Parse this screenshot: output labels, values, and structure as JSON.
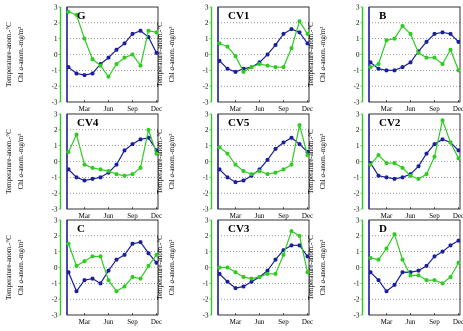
{
  "figure": {
    "ylabel_temperature": "Temperature-anom.-°C",
    "ylabel_chl_prefix": "Chl ",
    "ylabel_chl_italic": "a",
    "ylabel_chl_suffix": "-anom.-mg/m³",
    "colors": {
      "temperature": "#1a1f9c",
      "chlorophyll": "#2ecc1f",
      "axis": "#000000"
    }
  },
  "chart_data": [
    {
      "type": "line",
      "title": "G",
      "categories": [
        "Jan",
        "Feb",
        "Mar",
        "Apr",
        "May",
        "Jun",
        "Jul",
        "Aug",
        "Sep",
        "Oct",
        "Nov",
        "Dec"
      ],
      "xtick_labels": [
        "Mar",
        "Jun",
        "Sep",
        "Dec"
      ],
      "ylim": [
        -3,
        3
      ],
      "yticks": [
        -3,
        -2,
        -1,
        0,
        1,
        2,
        3
      ],
      "series": [
        {
          "key": "temperature",
          "values": [
            -0.8,
            -1.2,
            -1.3,
            -1.2,
            -0.6,
            -0.2,
            0.3,
            0.7,
            1.3,
            1.5,
            1.1,
            0.1
          ]
        },
        {
          "key": "chlorophyll",
          "values": [
            2.7,
            2.5,
            1.0,
            -0.3,
            -0.7,
            -1.4,
            -0.6,
            -0.2,
            0.0,
            -0.7,
            1.5,
            1.4
          ]
        }
      ]
    },
    {
      "type": "line",
      "title": "CV1",
      "categories": [
        "Jan",
        "Feb",
        "Mar",
        "Apr",
        "May",
        "Jun",
        "Jul",
        "Aug",
        "Sep",
        "Oct",
        "Nov",
        "Dec"
      ],
      "xtick_labels": [
        "Mar",
        "Jun",
        "Sep",
        "Dec"
      ],
      "ylim": [
        -3,
        3
      ],
      "yticks": [
        -3,
        -2,
        -1,
        0,
        1,
        2,
        3
      ],
      "series": [
        {
          "key": "temperature",
          "values": [
            -0.4,
            -0.9,
            -1.1,
            -0.9,
            -0.8,
            -0.5,
            0.0,
            0.6,
            1.3,
            1.6,
            1.4,
            0.7
          ]
        },
        {
          "key": "chlorophyll",
          "values": [
            0.7,
            0.5,
            -0.1,
            -1.1,
            -0.8,
            -0.6,
            -0.7,
            -0.8,
            -0.8,
            0.4,
            2.1,
            1.3
          ]
        }
      ]
    },
    {
      "type": "line",
      "title": "B",
      "categories": [
        "Jan",
        "Feb",
        "Mar",
        "Apr",
        "May",
        "Jun",
        "Jul",
        "Aug",
        "Sep",
        "Oct",
        "Nov",
        "Dec"
      ],
      "xtick_labels": [
        "Mar",
        "Jun",
        "Sep",
        "Dec"
      ],
      "ylim": [
        -3,
        3
      ],
      "yticks": [
        -3,
        -2,
        -1,
        0,
        1,
        2,
        3
      ],
      "series": [
        {
          "key": "temperature",
          "values": [
            -0.5,
            -0.9,
            -1.0,
            -1.0,
            -0.8,
            -0.5,
            0.2,
            0.8,
            1.3,
            1.4,
            1.3,
            0.8
          ]
        },
        {
          "key": "chlorophyll",
          "values": [
            -0.8,
            -0.6,
            0.9,
            1.0,
            1.8,
            1.3,
            0.1,
            -0.2,
            -0.2,
            -0.6,
            0.3,
            -1.0
          ]
        }
      ]
    },
    {
      "type": "line",
      "title": "CV4",
      "categories": [
        "Jan",
        "Feb",
        "Mar",
        "Apr",
        "May",
        "Jun",
        "Jul",
        "Aug",
        "Sep",
        "Oct",
        "Nov",
        "Dec"
      ],
      "xtick_labels": [
        "Mar",
        "Jun",
        "Sep",
        "Dec"
      ],
      "ylim": [
        -3,
        3
      ],
      "yticks": [
        -3,
        -2,
        -1,
        0,
        1,
        2,
        3
      ],
      "series": [
        {
          "key": "temperature",
          "values": [
            -0.5,
            -1.0,
            -1.2,
            -1.1,
            -1.0,
            -0.7,
            -0.2,
            0.7,
            1.1,
            1.4,
            1.5,
            0.7
          ]
        },
        {
          "key": "chlorophyll",
          "values": [
            0.6,
            1.7,
            -0.2,
            -0.4,
            -0.5,
            -0.6,
            -0.8,
            -0.9,
            -0.8,
            -0.4,
            2.0,
            0.5
          ]
        }
      ]
    },
    {
      "type": "line",
      "title": "CV5",
      "categories": [
        "Jan",
        "Feb",
        "Mar",
        "Apr",
        "May",
        "Jun",
        "Jul",
        "Aug",
        "Sep",
        "Oct",
        "Nov",
        "Dec"
      ],
      "xtick_labels": [
        "Mar",
        "Jun",
        "Sep",
        "Dec"
      ],
      "ylim": [
        -3,
        3
      ],
      "yticks": [
        -3,
        -2,
        -1,
        0,
        1,
        2,
        3
      ],
      "series": [
        {
          "key": "temperature",
          "values": [
            -0.5,
            -1.0,
            -1.3,
            -1.2,
            -0.9,
            -0.5,
            0.1,
            0.8,
            1.2,
            1.5,
            1.1,
            0.6
          ]
        },
        {
          "key": "chlorophyll",
          "values": [
            0.9,
            0.5,
            -0.2,
            -0.6,
            -0.8,
            -0.6,
            -0.8,
            -0.7,
            -0.5,
            -0.2,
            2.3,
            0.4
          ]
        }
      ]
    },
    {
      "type": "line",
      "title": "CV2",
      "categories": [
        "Jan",
        "Feb",
        "Mar",
        "Apr",
        "May",
        "Jun",
        "Jul",
        "Aug",
        "Sep",
        "Oct",
        "Nov",
        "Dec"
      ],
      "xtick_labels": [
        "Mar",
        "Jun",
        "Sep",
        "Dec"
      ],
      "ylim": [
        -3,
        3
      ],
      "yticks": [
        -3,
        -2,
        -1,
        0,
        1,
        2,
        3
      ],
      "series": [
        {
          "key": "temperature",
          "values": [
            -0.1,
            -0.9,
            -1.0,
            -1.1,
            -1.0,
            -0.8,
            -0.3,
            0.5,
            1.1,
            1.4,
            1.2,
            0.7
          ]
        },
        {
          "key": "chlorophyll",
          "values": [
            -0.2,
            0.4,
            -0.1,
            -0.1,
            -0.4,
            -0.9,
            -1.1,
            -0.8,
            0.3,
            2.6,
            1.2,
            0.2
          ]
        }
      ]
    },
    {
      "type": "line",
      "title": "C",
      "categories": [
        "Jan",
        "Feb",
        "Mar",
        "Apr",
        "May",
        "Jun",
        "Jul",
        "Aug",
        "Sep",
        "Oct",
        "Nov",
        "Dec"
      ],
      "xtick_labels": [
        "Mar",
        "Jun",
        "Sep",
        "Dec"
      ],
      "ylim": [
        -3,
        3
      ],
      "yticks": [
        -3,
        -2,
        -1,
        0,
        1,
        2,
        3
      ],
      "series": [
        {
          "key": "temperature",
          "values": [
            -0.3,
            -1.5,
            -0.8,
            -0.7,
            -1.0,
            -0.2,
            0.5,
            0.8,
            1.5,
            1.6,
            0.9,
            0.3
          ]
        },
        {
          "key": "chlorophyll",
          "values": [
            1.5,
            0.1,
            0.4,
            0.7,
            0.7,
            -0.8,
            -1.5,
            -1.2,
            -0.6,
            -0.7,
            0.1,
            0.8
          ]
        }
      ]
    },
    {
      "type": "line",
      "title": "CV3",
      "categories": [
        "Jan",
        "Feb",
        "Mar",
        "Apr",
        "May",
        "Jun",
        "Jul",
        "Aug",
        "Sep",
        "Oct",
        "Nov",
        "Dec"
      ],
      "xtick_labels": [
        "Mar",
        "Jun",
        "Sep",
        "Dec"
      ],
      "ylim": [
        -3,
        3
      ],
      "yticks": [
        -3,
        -2,
        -1,
        0,
        1,
        2,
        3
      ],
      "series": [
        {
          "key": "temperature",
          "values": [
            -0.4,
            -0.9,
            -1.3,
            -1.2,
            -0.9,
            -0.6,
            -0.2,
            0.5,
            1.1,
            1.4,
            1.4,
            0.7
          ]
        },
        {
          "key": "chlorophyll",
          "values": [
            0.0,
            0.0,
            -0.3,
            -0.6,
            -0.7,
            -0.6,
            -0.4,
            -0.4,
            0.8,
            2.3,
            2.0,
            -0.3
          ]
        }
      ]
    },
    {
      "type": "line",
      "title": "D",
      "categories": [
        "Jan",
        "Feb",
        "Mar",
        "Apr",
        "May",
        "Jun",
        "Jul",
        "Aug",
        "Sep",
        "Oct",
        "Nov",
        "Dec"
      ],
      "xtick_labels": [
        "Mar",
        "Jun",
        "Sep",
        "Dec"
      ],
      "ylim": [
        -3,
        3
      ],
      "yticks": [
        -3,
        -2,
        -1,
        0,
        1,
        2,
        3
      ],
      "series": [
        {
          "key": "temperature",
          "values": [
            -0.3,
            -0.8,
            -1.5,
            -1.1,
            -0.3,
            -0.3,
            -0.2,
            0.1,
            0.7,
            1.0,
            1.4,
            1.7
          ]
        },
        {
          "key": "chlorophyll",
          "values": [
            0.6,
            0.5,
            1.2,
            2.1,
            0.5,
            -0.5,
            -0.5,
            -0.8,
            -0.8,
            -1.0,
            -0.6,
            0.3
          ]
        }
      ]
    }
  ]
}
